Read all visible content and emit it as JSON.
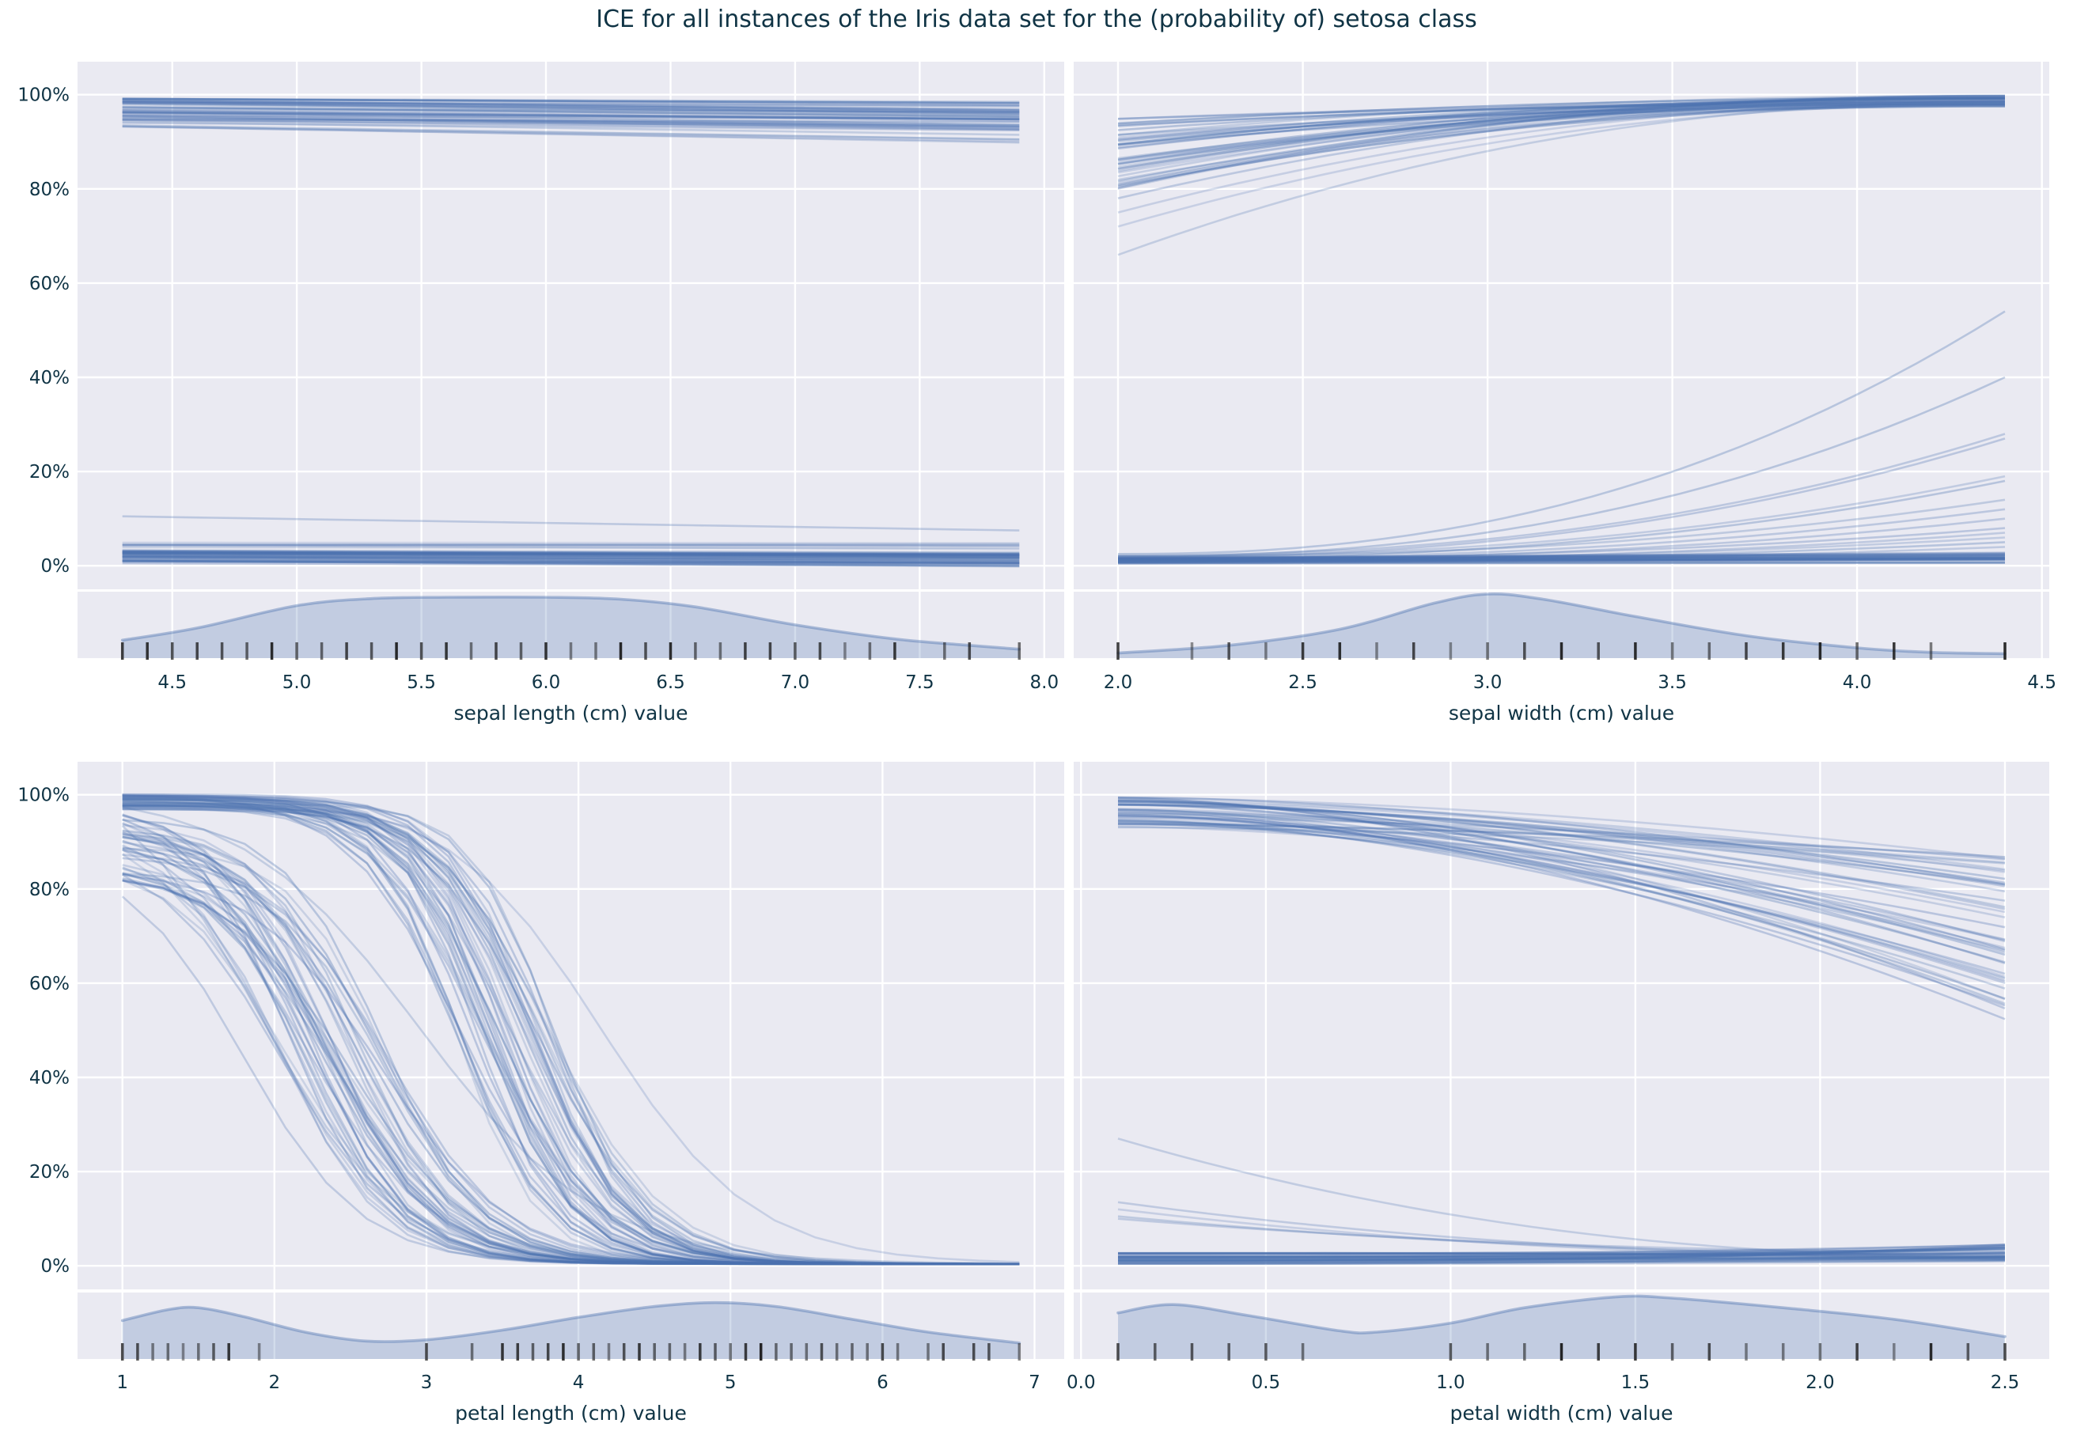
{
  "title": "ICE for all instances of the Iris data set for the (probability of) setosa class",
  "y_tick_labels": [
    "0%",
    "20%",
    "40%",
    "60%",
    "80%",
    "100%"
  ],
  "y_ticks_pct": [
    0,
    20,
    40,
    60,
    80,
    100
  ],
  "ylim": [
    -0.05,
    1.07
  ],
  "colors": {
    "background": "#ffffff",
    "axes_background": "#eaeaf2",
    "grid": "#ffffff",
    "ice_line": "#4c72b0",
    "density_fill": "#4c72b0",
    "rug": "#1a1a1a",
    "text": "#103445"
  },
  "chart_data": [
    {
      "name": "sepal-length",
      "type": "line",
      "xlabel": "sepal length (cm) value",
      "x_ticks": [
        4.5,
        5.0,
        5.5,
        6.0,
        6.5,
        7.0,
        7.5,
        8.0
      ],
      "x_tick_labels": [
        "4.5",
        "5.0",
        "5.5",
        "6.0",
        "6.5",
        "7.0",
        "7.5",
        "8.0"
      ],
      "xlim": [
        4.12,
        8.08
      ],
      "x_range": [
        4.3,
        7.9
      ],
      "show_y_tick_labels": true,
      "line_bundles": [
        {
          "shape": "linear",
          "count": 38,
          "y0": [
            0.945,
            0.992
          ],
          "dy": [
            -0.028,
            -0.006
          ],
          "alpha": [
            0.22,
            0.38
          ]
        },
        {
          "shape": "linear",
          "count": 6,
          "y0": [
            0.928,
            0.948
          ],
          "dy": [
            -0.035,
            -0.015
          ],
          "alpha": [
            0.18,
            0.28
          ]
        },
        {
          "shape": "linear",
          "pairs": [
            [
              0.935,
              0.905
            ]
          ],
          "alpha": [
            0.28,
            0.3
          ]
        },
        {
          "shape": "linear",
          "pairs": [
            [
              0.105,
              0.075
            ]
          ],
          "alpha": [
            0.28,
            0.3
          ]
        },
        {
          "shape": "linear",
          "count": 36,
          "y0": [
            0.005,
            0.034
          ],
          "dy": [
            -0.012,
            -0.002
          ],
          "alpha": [
            0.25,
            0.4
          ]
        },
        {
          "shape": "linear",
          "count": 7,
          "y0": [
            0.034,
            0.05
          ],
          "dy": [
            -0.01,
            0.004
          ],
          "alpha": [
            0.15,
            0.25
          ]
        }
      ],
      "rug_values": [
        4.3,
        4.4,
        4.5,
        4.6,
        4.7,
        4.8,
        4.9,
        5.0,
        5.1,
        5.2,
        5.3,
        5.4,
        5.5,
        5.6,
        5.7,
        5.8,
        5.9,
        6.0,
        6.1,
        6.2,
        6.3,
        6.4,
        6.5,
        6.6,
        6.7,
        6.8,
        6.9,
        7.0,
        7.1,
        7.2,
        7.3,
        7.4,
        7.6,
        7.7,
        7.9
      ],
      "density": [
        [
          4.3,
          0.28
        ],
        [
          4.6,
          0.47
        ],
        [
          5.0,
          0.82
        ],
        [
          5.3,
          0.93
        ],
        [
          5.6,
          0.95
        ],
        [
          6.0,
          0.95
        ],
        [
          6.3,
          0.92
        ],
        [
          6.6,
          0.8
        ],
        [
          7.0,
          0.52
        ],
        [
          7.4,
          0.3
        ],
        [
          7.7,
          0.2
        ],
        [
          7.9,
          0.14
        ]
      ]
    },
    {
      "name": "sepal-width",
      "type": "line",
      "xlabel": "sepal width (cm) value",
      "x_ticks": [
        2.0,
        2.5,
        3.0,
        3.5,
        4.0,
        4.5
      ],
      "x_tick_labels": [
        "2.0",
        "2.5",
        "3.0",
        "3.5",
        "4.0",
        "4.5"
      ],
      "xlim": [
        1.88,
        4.52
      ],
      "x_range": [
        2.0,
        4.4
      ],
      "show_y_tick_labels": false,
      "line_bundles": [
        {
          "shape": "invpower",
          "p": 2.1,
          "count": 40,
          "y0": [
            0.8,
            0.96
          ],
          "y1": [
            0.975,
            0.998
          ],
          "alpha": [
            0.2,
            0.38
          ]
        },
        {
          "shape": "invpower",
          "p": 2.1,
          "pairs": [
            [
              0.66,
              0.985
            ],
            [
              0.72,
              0.98
            ],
            [
              0.75,
              0.985
            ],
            [
              0.78,
              0.99
            ]
          ],
          "alpha": [
            0.22,
            0.3
          ]
        },
        {
          "shape": "power",
          "p": 2.3,
          "pairs": [
            [
              0.025,
              0.54
            ],
            [
              0.02,
              0.4
            ],
            [
              0.022,
              0.28
            ],
            [
              0.018,
              0.27
            ],
            [
              0.02,
              0.19
            ],
            [
              0.015,
              0.18
            ],
            [
              0.02,
              0.14
            ],
            [
              0.015,
              0.12
            ],
            [
              0.012,
              0.1
            ],
            [
              0.015,
              0.08
            ],
            [
              0.01,
              0.07
            ],
            [
              0.012,
              0.06
            ],
            [
              0.01,
              0.05
            ],
            [
              0.008,
              0.04
            ]
          ],
          "alpha": [
            0.25,
            0.35
          ]
        },
        {
          "shape": "linear",
          "count": 28,
          "y0": [
            0.004,
            0.018
          ],
          "dy": [
            0.0,
            0.012
          ],
          "alpha": [
            0.25,
            0.4
          ]
        }
      ],
      "rug_values": [
        2.0,
        2.2,
        2.3,
        2.4,
        2.5,
        2.6,
        2.7,
        2.8,
        2.9,
        3.0,
        3.1,
        3.2,
        3.3,
        3.4,
        3.5,
        3.6,
        3.7,
        3.8,
        3.9,
        4.0,
        4.1,
        4.2,
        4.4
      ],
      "density": [
        [
          2.0,
          0.08
        ],
        [
          2.3,
          0.2
        ],
        [
          2.6,
          0.45
        ],
        [
          2.85,
          0.85
        ],
        [
          3.0,
          1.0
        ],
        [
          3.15,
          0.92
        ],
        [
          3.4,
          0.65
        ],
        [
          3.7,
          0.35
        ],
        [
          4.0,
          0.16
        ],
        [
          4.2,
          0.09
        ],
        [
          4.4,
          0.07
        ]
      ]
    },
    {
      "name": "petal-length",
      "type": "line",
      "xlabel": "petal length (cm) value",
      "x_ticks": [
        1,
        2,
        3,
        4,
        5,
        6,
        7
      ],
      "x_tick_labels": [
        "1",
        "2",
        "3",
        "4",
        "5",
        "6",
        "7"
      ],
      "xlim": [
        0.705,
        7.195
      ],
      "x_range": [
        1.0,
        6.9
      ],
      "show_y_tick_labels": true,
      "line_bundles": [
        {
          "shape": "sigmoid",
          "count": 42,
          "y0": [
            0.8,
            0.96
          ],
          "mid": [
            2.0,
            2.75
          ],
          "k": [
            2.3,
            3.3
          ],
          "alpha": [
            0.2,
            0.35
          ]
        },
        {
          "shape": "sigmoid",
          "count": 44,
          "y0": [
            0.965,
            0.998
          ],
          "mid": [
            3.15,
            3.85
          ],
          "k": [
            2.6,
            3.8
          ],
          "alpha": [
            0.2,
            0.35
          ]
        },
        {
          "shape": "sigmoid",
          "items": [
            {
              "y0": 0.78,
              "mid": 1.8,
              "k": 2.6
            },
            {
              "y0": 0.93,
              "mid": 1.9,
              "k": 2.2
            },
            {
              "y0": 0.97,
              "mid": 2.95,
              "k": 1.7
            },
            {
              "y0": 0.995,
              "mid": 4.15,
              "k": 2.0
            }
          ],
          "alpha": [
            0.22,
            0.28
          ]
        }
      ],
      "rug_values": [
        1.0,
        1.1,
        1.2,
        1.3,
        1.4,
        1.5,
        1.6,
        1.7,
        1.9,
        3.0,
        3.3,
        3.5,
        3.6,
        3.7,
        3.8,
        3.9,
        4.0,
        4.1,
        4.2,
        4.3,
        4.4,
        4.5,
        4.6,
        4.7,
        4.8,
        4.9,
        5.0,
        5.1,
        5.2,
        5.3,
        5.4,
        5.5,
        5.6,
        5.7,
        5.8,
        5.9,
        6.0,
        6.1,
        6.3,
        6.4,
        6.6,
        6.7,
        6.9
      ],
      "density": [
        [
          1.0,
          0.6
        ],
        [
          1.3,
          0.77
        ],
        [
          1.5,
          0.8
        ],
        [
          1.8,
          0.66
        ],
        [
          2.2,
          0.42
        ],
        [
          2.6,
          0.28
        ],
        [
          3.0,
          0.3
        ],
        [
          3.5,
          0.45
        ],
        [
          4.0,
          0.65
        ],
        [
          4.5,
          0.82
        ],
        [
          4.9,
          0.88
        ],
        [
          5.3,
          0.82
        ],
        [
          5.8,
          0.62
        ],
        [
          6.3,
          0.42
        ],
        [
          6.9,
          0.25
        ]
      ]
    },
    {
      "name": "petal-width",
      "type": "line",
      "xlabel": "petal width (cm) value",
      "x_ticks": [
        0.0,
        0.5,
        1.0,
        1.5,
        2.0,
        2.5
      ],
      "x_tick_labels": [
        "0.0",
        "0.5",
        "1.0",
        "1.5",
        "2.0",
        "2.5"
      ],
      "xlim": [
        -0.02,
        2.62
      ],
      "x_range": [
        0.1,
        2.5
      ],
      "show_y_tick_labels": false,
      "line_bundles": [
        {
          "shape": "power",
          "p": 1.7,
          "count": 42,
          "y0": [
            0.93,
            0.995
          ],
          "y1": [
            0.52,
            0.88
          ],
          "alpha": [
            0.2,
            0.36
          ]
        },
        {
          "shape": "invpower",
          "p": 2.2,
          "pairs": [
            [
              0.27,
              0.02
            ],
            [
              0.135,
              0.02
            ],
            [
              0.12,
              0.018
            ],
            [
              0.105,
              0.025
            ],
            [
              0.1,
              0.03
            ]
          ],
          "alpha": [
            0.22,
            0.3
          ]
        },
        {
          "shape": "power",
          "p": 2.5,
          "count": 32,
          "y0": [
            0.004,
            0.028
          ],
          "y1": [
            0.01,
            0.045
          ],
          "alpha": [
            0.25,
            0.42
          ]
        }
      ],
      "rug_values": [
        0.1,
        0.2,
        0.3,
        0.4,
        0.5,
        0.6,
        1.0,
        1.1,
        1.2,
        1.3,
        1.4,
        1.5,
        1.6,
        1.7,
        1.8,
        1.9,
        2.0,
        2.1,
        2.2,
        2.3,
        2.4,
        2.5
      ],
      "density": [
        [
          0.1,
          0.72
        ],
        [
          0.25,
          0.85
        ],
        [
          0.45,
          0.68
        ],
        [
          0.7,
          0.44
        ],
        [
          0.8,
          0.42
        ],
        [
          1.0,
          0.56
        ],
        [
          1.2,
          0.8
        ],
        [
          1.45,
          0.97
        ],
        [
          1.6,
          0.95
        ],
        [
          1.9,
          0.8
        ],
        [
          2.2,
          0.62
        ],
        [
          2.5,
          0.35
        ]
      ]
    }
  ]
}
